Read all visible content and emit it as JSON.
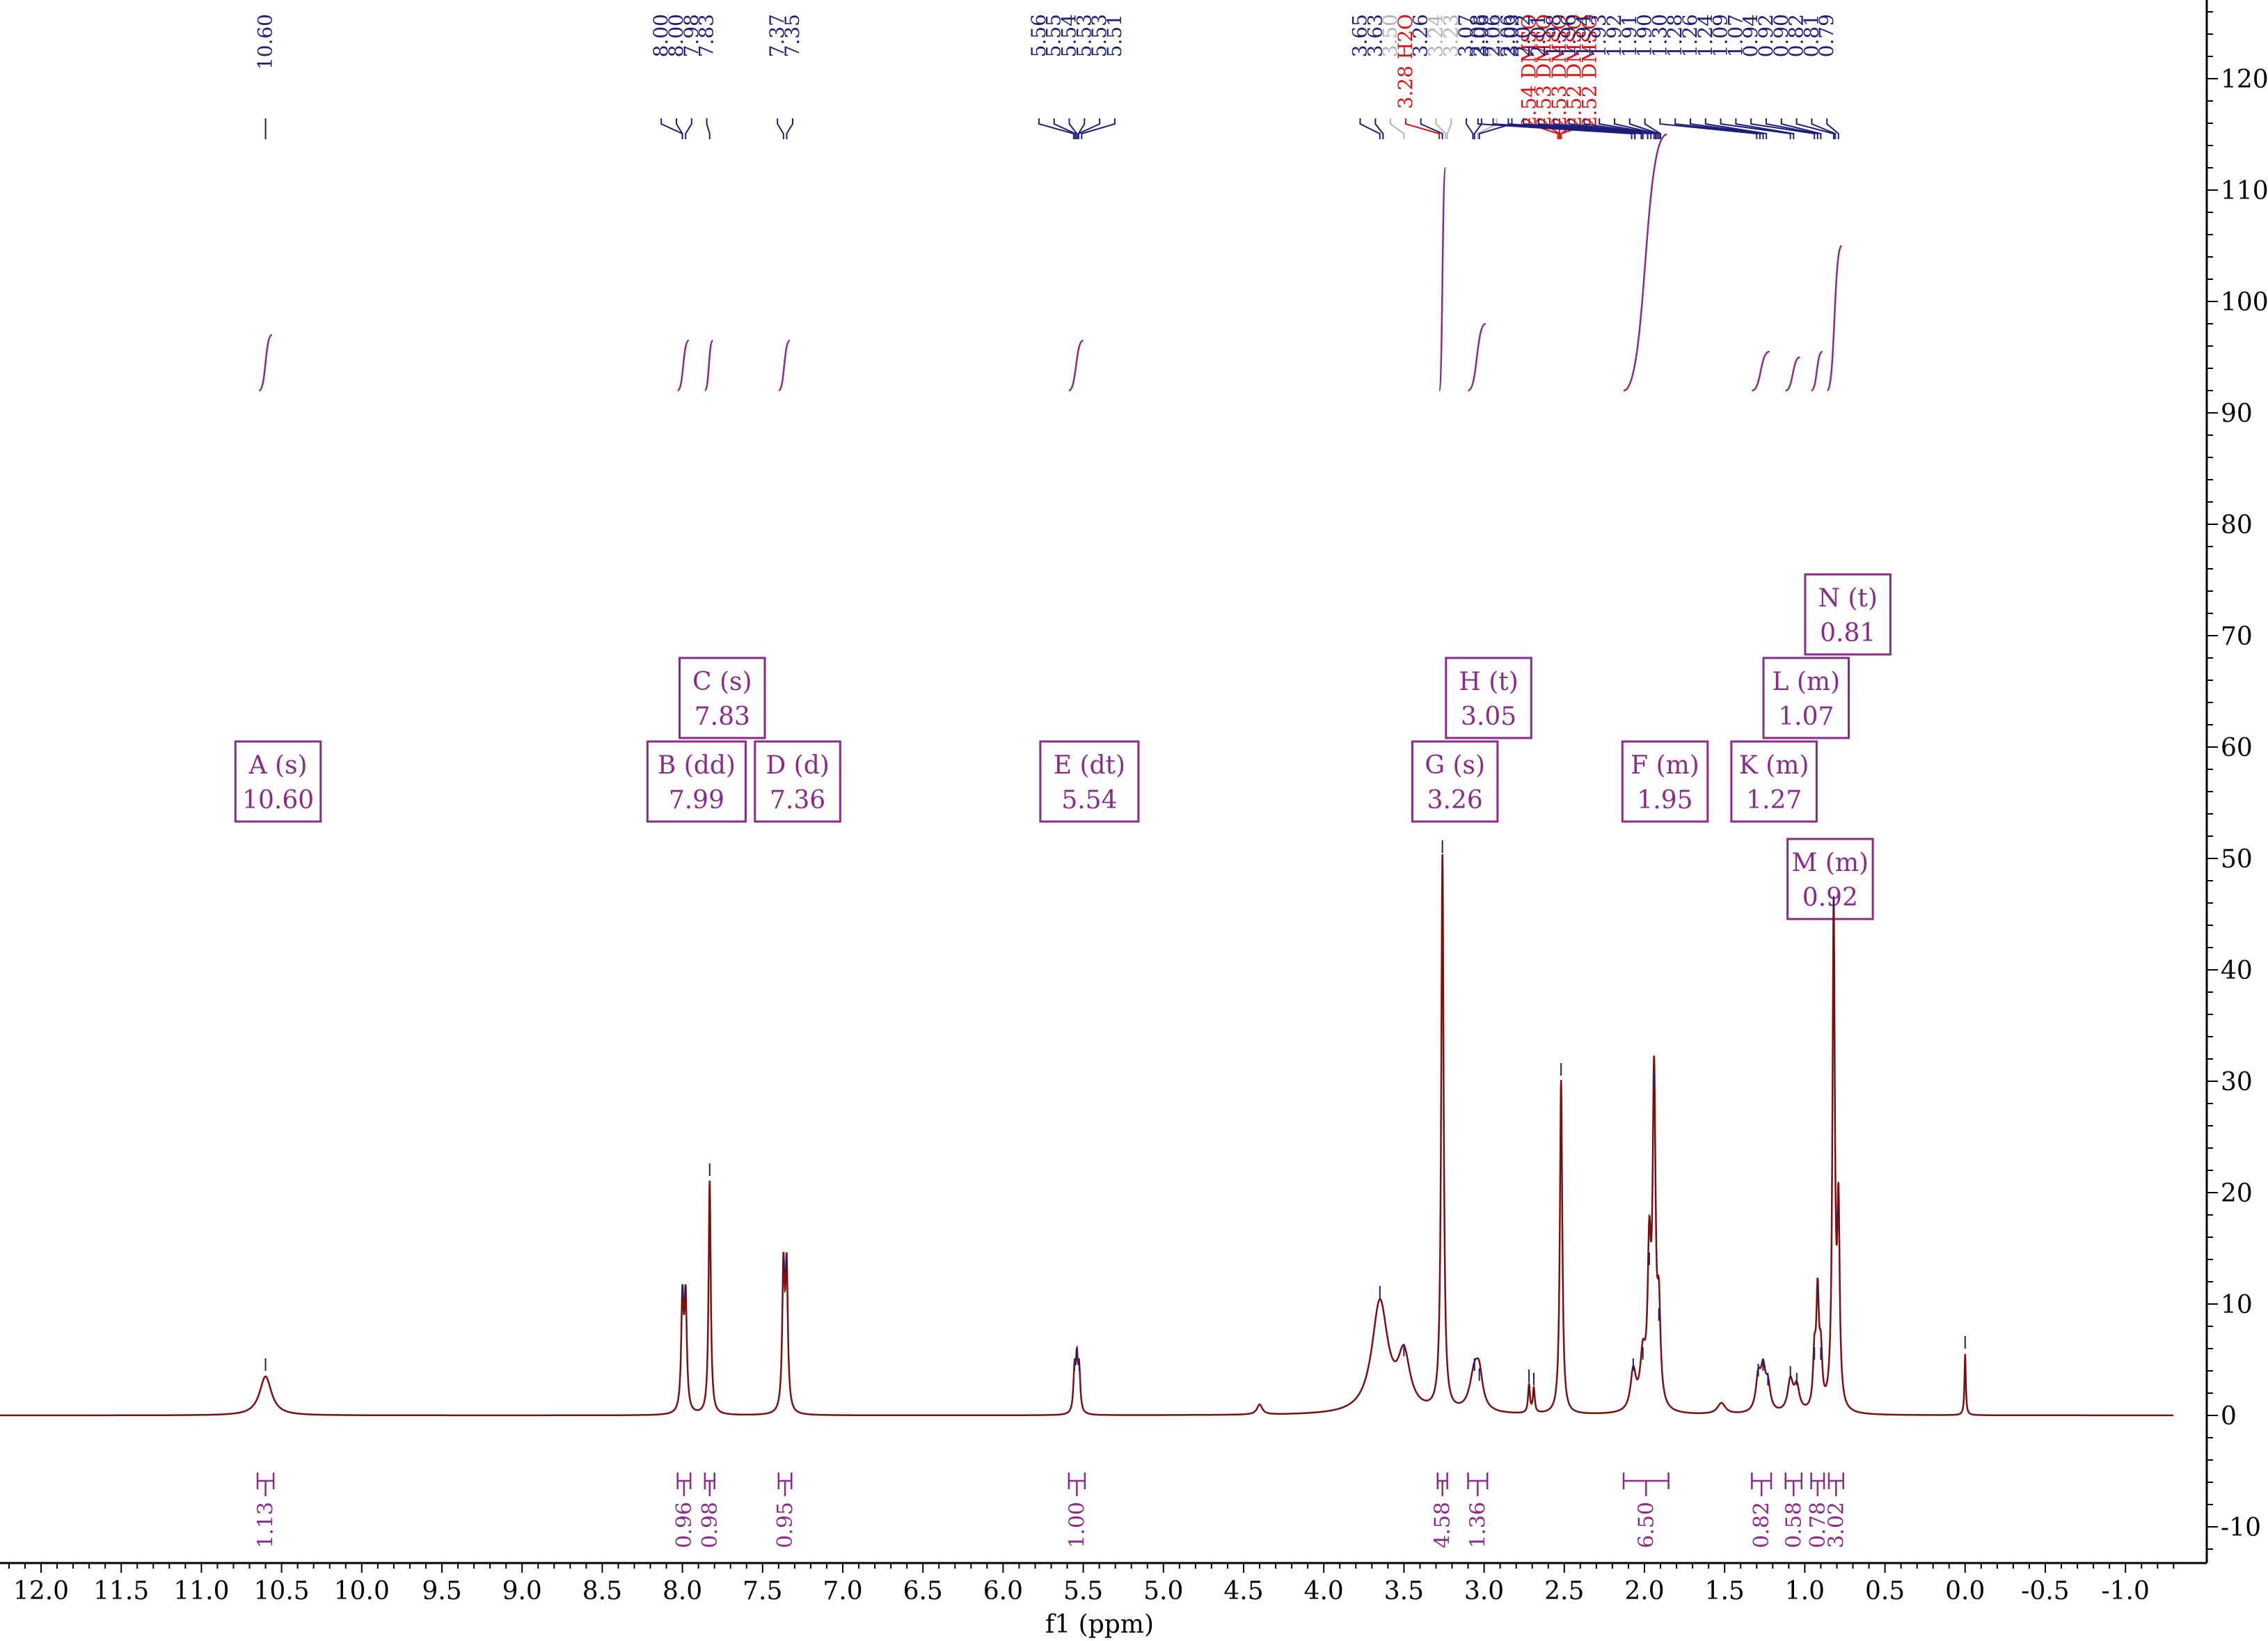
{
  "colors": {
    "spectrum": "#7a1010",
    "peak_label": "#1d1d7a",
    "solvent_label": "#e11010",
    "water_label": "#e11010",
    "impurity_label": "#b4b4b4",
    "integral": "#8a2a8a",
    "axis": "#000000"
  },
  "chart_data": {
    "type": "line",
    "title": "",
    "xlabel": "f1 (ppm)",
    "ylabel": "",
    "xlim": [
      12.3,
      -1.3
    ],
    "ylim": [
      -12,
      126
    ],
    "x_reversed": true,
    "grid": false,
    "x_ticks": [
      "12.0",
      "11.5",
      "11.0",
      "10.5",
      "10.0",
      "9.5",
      "9.0",
      "8.5",
      "8.0",
      "7.5",
      "7.0",
      "6.5",
      "6.0",
      "5.5",
      "5.0",
      "4.5",
      "4.0",
      "3.5",
      "3.0",
      "2.5",
      "2.0",
      "1.5",
      "1.0",
      "0.5",
      "0.0",
      "-0.5",
      "-1.0"
    ],
    "y_ticks": [
      "-10",
      "0",
      "10",
      "20",
      "30",
      "40",
      "50",
      "60",
      "70",
      "80",
      "90",
      "100",
      "110",
      "120"
    ],
    "peaks": [
      {
        "ppm": 10.6,
        "height": 3.5,
        "width": 0.045
      },
      {
        "ppm": 8.0,
        "height": 10,
        "width": 0.009
      },
      {
        "ppm": 7.98,
        "height": 10,
        "width": 0.009
      },
      {
        "ppm": 7.83,
        "height": 21,
        "width": 0.008
      },
      {
        "ppm": 7.37,
        "height": 12.5,
        "width": 0.009
      },
      {
        "ppm": 7.35,
        "height": 12.5,
        "width": 0.009
      },
      {
        "ppm": 5.555,
        "height": 3.5,
        "width": 0.008
      },
      {
        "ppm": 5.54,
        "height": 4.5,
        "width": 0.008
      },
      {
        "ppm": 5.525,
        "height": 3.5,
        "width": 0.008
      },
      {
        "ppm": 4.4,
        "height": 0.9,
        "width": 0.02
      },
      {
        "ppm": 3.65,
        "height": 10,
        "width": 0.06
      },
      {
        "ppm": 3.5,
        "height": 4.8,
        "width": 0.045
      },
      {
        "ppm": 3.26,
        "height": 50,
        "width": 0.009
      },
      {
        "ppm": 3.06,
        "height": 3.5,
        "width": 0.035
      },
      {
        "ppm": 3.03,
        "height": 2.6,
        "width": 0.025
      },
      {
        "ppm": 2.72,
        "height": 2.5,
        "width": 0.007
      },
      {
        "ppm": 2.69,
        "height": 2.2,
        "width": 0.007
      },
      {
        "ppm": 2.52,
        "height": 30,
        "width": 0.009
      },
      {
        "ppm": 2.07,
        "height": 3.5,
        "width": 0.02
      },
      {
        "ppm": 2.01,
        "height": 4.5,
        "width": 0.02
      },
      {
        "ppm": 1.97,
        "height": 13,
        "width": 0.012
      },
      {
        "ppm": 1.94,
        "height": 29,
        "width": 0.011
      },
      {
        "ppm": 1.91,
        "height": 8,
        "width": 0.012
      },
      {
        "ppm": 1.52,
        "height": 1.0,
        "width": 0.03
      },
      {
        "ppm": 1.29,
        "height": 3.0,
        "width": 0.018
      },
      {
        "ppm": 1.26,
        "height": 3.5,
        "width": 0.018
      },
      {
        "ppm": 1.23,
        "height": 2.2,
        "width": 0.018
      },
      {
        "ppm": 1.09,
        "height": 2.8,
        "width": 0.02
      },
      {
        "ppm": 1.05,
        "height": 2.2,
        "width": 0.02
      },
      {
        "ppm": 0.94,
        "height": 4.5,
        "width": 0.01
      },
      {
        "ppm": 0.92,
        "height": 10,
        "width": 0.01
      },
      {
        "ppm": 0.9,
        "height": 4.5,
        "width": 0.01
      },
      {
        "ppm": 0.82,
        "height": 45,
        "width": 0.009
      },
      {
        "ppm": 0.79,
        "height": 17,
        "width": 0.009
      },
      {
        "ppm": 0.0,
        "height": 5.5,
        "width": 0.005
      }
    ],
    "peak_labels": {
      "groups": [
        {
          "anchor": 10.6,
          "labels": [
            {
              "text": "10.60",
              "ppm": 10.6
            }
          ]
        },
        {
          "anchor": 7.99,
          "labels": [
            {
              "text": "8.00",
              "ppm": 8.0
            },
            {
              "text": "8.00",
              "ppm": 8.0
            },
            {
              "text": "7.98",
              "ppm": 7.98
            },
            {
              "text": "7.83",
              "ppm": 7.83
            }
          ]
        },
        {
          "anchor": 7.36,
          "labels": [
            {
              "text": "7.37",
              "ppm": 7.37
            },
            {
              "text": "7.35",
              "ppm": 7.35
            }
          ]
        },
        {
          "anchor": 5.54,
          "labels": [
            {
              "text": "5.56",
              "ppm": 5.56
            },
            {
              "text": "5.55",
              "ppm": 5.55
            },
            {
              "text": "5.54",
              "ppm": 5.54
            },
            {
              "text": "5.53",
              "ppm": 5.53
            },
            {
              "text": "5.53",
              "ppm": 5.53
            },
            {
              "text": "5.51",
              "ppm": 5.51
            }
          ]
        },
        {
          "anchor": 3.3,
          "labels": [
            {
              "text": "3.65",
              "ppm": 3.65,
              "kind": "peak"
            },
            {
              "text": "3.63",
              "ppm": 3.63,
              "kind": "peak"
            },
            {
              "text": "3.50",
              "ppm": 3.5,
              "kind": "impurity"
            },
            {
              "text": "3.28 H2O",
              "ppm": 3.28,
              "kind": "water"
            },
            {
              "text": "3.26",
              "ppm": 3.26,
              "kind": "peak"
            },
            {
              "text": "3.24",
              "ppm": 3.24,
              "kind": "impurity"
            },
            {
              "text": "3.23",
              "ppm": 3.23,
              "kind": "impurity"
            },
            {
              "text": "3.07",
              "ppm": 3.07,
              "kind": "peak"
            },
            {
              "text": "3.06",
              "ppm": 3.06,
              "kind": "peak"
            },
            {
              "text": "3.04",
              "ppm": 3.04,
              "kind": "impurity"
            },
            {
              "text": "3.03",
              "ppm": 3.03,
              "kind": "peak"
            }
          ]
        },
        {
          "anchor": 2.53,
          "labels": [
            {
              "text": "2.54 DMSO",
              "ppm": 2.54,
              "kind": "solvent"
            },
            {
              "text": "2.53 DMSO",
              "ppm": 2.53,
              "kind": "solvent"
            },
            {
              "text": "2.53 DMSO",
              "ppm": 2.53,
              "kind": "solvent"
            },
            {
              "text": "2.52 DMSO",
              "ppm": 2.52,
              "kind": "solvent"
            },
            {
              "text": "2.52 DMSO",
              "ppm": 2.52,
              "kind": "solvent"
            }
          ]
        },
        {
          "anchor": 1.95,
          "labels": [
            {
              "text": "2.08",
              "ppm": 2.08
            },
            {
              "text": "2.06",
              "ppm": 2.06
            },
            {
              "text": "2.06",
              "ppm": 2.06
            },
            {
              "text": "2.02",
              "ppm": 2.02
            },
            {
              "text": "2.01",
              "ppm": 2.01
            },
            {
              "text": "1.98",
              "ppm": 1.98
            },
            {
              "text": "1.96",
              "ppm": 1.96
            },
            {
              "text": "1.94",
              "ppm": 1.94
            },
            {
              "text": "1.93",
              "ppm": 1.93
            },
            {
              "text": "1.92",
              "ppm": 1.92
            },
            {
              "text": "1.91",
              "ppm": 1.91
            },
            {
              "text": "1.90",
              "ppm": 1.9
            },
            {
              "text": "1.30",
              "ppm": 1.3
            },
            {
              "text": "1.28",
              "ppm": 1.28
            },
            {
              "text": "1.26",
              "ppm": 1.26
            },
            {
              "text": "1.24",
              "ppm": 1.24
            },
            {
              "text": "1.09",
              "ppm": 1.09
            },
            {
              "text": "1.07",
              "ppm": 1.07
            },
            {
              "text": "0.94",
              "ppm": 0.94
            },
            {
              "text": "0.92",
              "ppm": 0.92
            },
            {
              "text": "0.90",
              "ppm": 0.9
            },
            {
              "text": "0.82",
              "ppm": 0.82
            },
            {
              "text": "0.81",
              "ppm": 0.81
            },
            {
              "text": "0.79",
              "ppm": 0.79
            }
          ]
        }
      ]
    },
    "multiplets": [
      {
        "letter": "A",
        "mult": "(s)",
        "shift": "10.60",
        "ppm": 10.6,
        "level": 0
      },
      {
        "letter": "B",
        "mult": "(dd)",
        "shift": "7.99",
        "ppm": 7.99,
        "level": 0
      },
      {
        "letter": "C",
        "mult": "(s)",
        "shift": "7.83",
        "ppm": 7.83,
        "level": 1
      },
      {
        "letter": "D",
        "mult": "(d)",
        "shift": "7.36",
        "ppm": 7.36,
        "level": 0
      },
      {
        "letter": "E",
        "mult": "(dt)",
        "shift": "5.54",
        "ppm": 5.54,
        "level": 0
      },
      {
        "letter": "G",
        "mult": "(s)",
        "shift": "3.26",
        "ppm": 3.26,
        "level": 0
      },
      {
        "letter": "H",
        "mult": "(t)",
        "shift": "3.05",
        "ppm": 3.05,
        "level": 1
      },
      {
        "letter": "F",
        "mult": "(m)",
        "shift": "1.95",
        "ppm": 1.95,
        "level": 0
      },
      {
        "letter": "K",
        "mult": "(m)",
        "shift": "1.27",
        "ppm": 1.27,
        "level": 0
      },
      {
        "letter": "L",
        "mult": "(m)",
        "shift": "1.07",
        "ppm": 1.07,
        "level": 1
      },
      {
        "letter": "N",
        "mult": "(t)",
        "shift": "0.81",
        "ppm": 0.81,
        "level": 2
      },
      {
        "letter": "M",
        "mult": "(m)",
        "shift": "0.92",
        "ppm": 0.92,
        "level": -1
      }
    ],
    "integrals": [
      {
        "value": "1.13",
        "from": 10.65,
        "to": 10.55
      },
      {
        "value": "0.96",
        "from": 8.03,
        "to": 7.95
      },
      {
        "value": "0.98",
        "from": 7.86,
        "to": 7.8
      },
      {
        "value": "0.95",
        "from": 7.4,
        "to": 7.32
      },
      {
        "value": "1.00",
        "from": 5.59,
        "to": 5.49
      },
      {
        "value": "4.58",
        "from": 3.29,
        "to": 3.23
      },
      {
        "value": "1.36",
        "from": 3.1,
        "to": 2.98
      },
      {
        "value": "6.50",
        "from": 2.13,
        "to": 1.85
      },
      {
        "value": "0.82",
        "from": 1.33,
        "to": 1.21
      },
      {
        "value": "0.58",
        "from": 1.12,
        "to": 1.02
      },
      {
        "value": "0.78",
        "from": 0.96,
        "to": 0.88
      },
      {
        "value": "3.02",
        "from": 0.85,
        "to": 0.76
      }
    ],
    "integral_curves": [
      {
        "from": 10.64,
        "to": 10.56,
        "y0": 92,
        "y1": 97
      },
      {
        "from": 8.03,
        "to": 7.96,
        "y0": 92,
        "y1": 96.5
      },
      {
        "from": 7.86,
        "to": 7.81,
        "y0": 92,
        "y1": 96.5
      },
      {
        "from": 7.4,
        "to": 7.33,
        "y0": 92,
        "y1": 96.5
      },
      {
        "from": 5.59,
        "to": 5.5,
        "y0": 92,
        "y1": 96.5
      },
      {
        "from": 3.28,
        "to": 3.24,
        "y0": 92,
        "y1": 112
      },
      {
        "from": 3.1,
        "to": 2.99,
        "y0": 92,
        "y1": 98
      },
      {
        "from": 2.13,
        "to": 1.86,
        "y0": 92,
        "y1": 115
      },
      {
        "from": 1.33,
        "to": 1.22,
        "y0": 92,
        "y1": 95.5
      },
      {
        "from": 1.12,
        "to": 1.03,
        "y0": 92,
        "y1": 95
      },
      {
        "from": 0.96,
        "to": 0.89,
        "y0": 92,
        "y1": 95.5
      },
      {
        "from": 0.86,
        "to": 0.77,
        "y0": 92,
        "y1": 105
      }
    ]
  }
}
